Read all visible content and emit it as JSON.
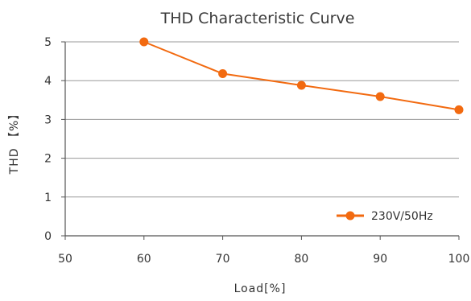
{
  "chart_data": {
    "type": "line",
    "title": "THD Characteristic Curve",
    "xlabel": "Load[%]",
    "ylabel": "THD 【%】",
    "xlim": [
      50,
      100
    ],
    "ylim": [
      0,
      5
    ],
    "x_ticks": [
      "50",
      "60",
      "70",
      "80",
      "90",
      "100"
    ],
    "y_ticks": [
      "0",
      "1",
      "2",
      "3",
      "4",
      "5"
    ],
    "grid": "horizontal",
    "legend_position": "bottom-right",
    "series": [
      {
        "name": "230V/50Hz",
        "color": "#f26a10",
        "x": [
          60,
          70,
          80,
          90,
          100
        ],
        "y": [
          5.0,
          4.18,
          3.88,
          3.59,
          3.25
        ]
      }
    ]
  }
}
